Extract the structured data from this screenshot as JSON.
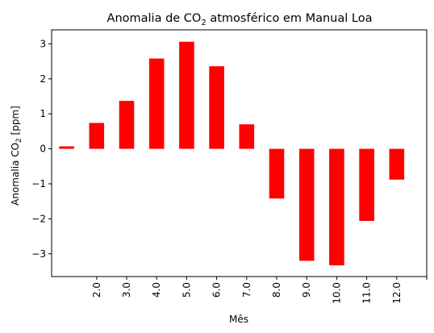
{
  "chart_data": {
    "type": "bar",
    "title_parts": {
      "before": "Anomalia de CO",
      "sub": "2",
      "after": " atmosférico em Manual Loa"
    },
    "xlabel": "Mês",
    "ylabel_parts": {
      "before": "Anomalia CO",
      "sub": "2",
      "after": " [ppm]"
    },
    "categories": [
      "",
      "2.0",
      "3.0",
      "4.0",
      "5.0",
      "6.0",
      "7.0",
      "8.0",
      "9.0",
      "10.0",
      "11.0",
      "12.0"
    ],
    "values": [
      0.07,
      0.74,
      1.37,
      2.58,
      3.06,
      2.36,
      0.7,
      -1.42,
      -3.2,
      -3.33,
      -2.06,
      -0.88
    ],
    "ylim": [
      -3.65,
      3.4
    ],
    "yticks": [
      -3,
      -2,
      -1,
      0,
      1,
      2,
      3
    ],
    "ytick_labels": [
      "−3",
      "−2",
      "−1",
      "0",
      "1",
      "2",
      "3"
    ],
    "bar_color": "#ff0000",
    "grid": false,
    "legend": "none"
  }
}
